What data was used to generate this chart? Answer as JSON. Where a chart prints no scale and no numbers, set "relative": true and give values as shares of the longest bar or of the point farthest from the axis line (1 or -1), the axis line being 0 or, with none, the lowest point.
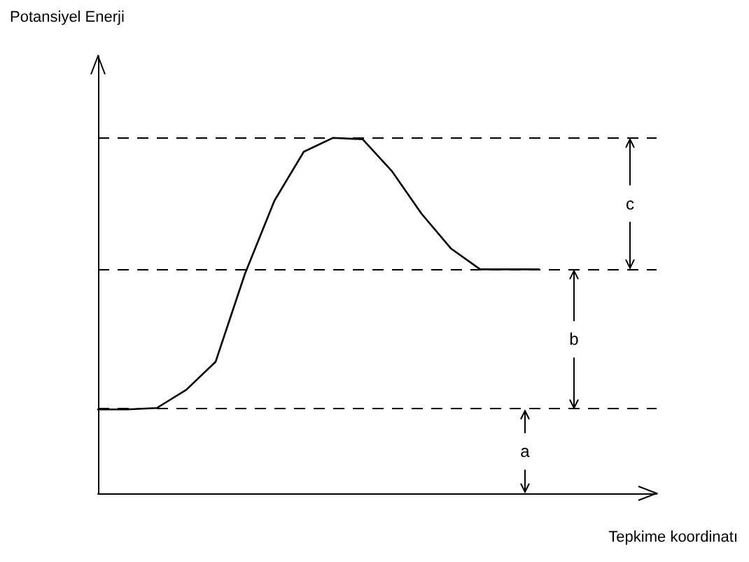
{
  "chart_data": {
    "type": "line",
    "relative": true,
    "title": "Potansiyel Enerji",
    "xlabel": "Tepkime koordinatı",
    "categories": [
      null,
      null,
      null,
      null,
      null,
      null,
      null,
      null,
      null,
      null,
      null,
      null,
      null,
      null,
      null,
      null,
      null,
      null,
      null,
      null
    ],
    "series": [
      {
        "color": "#000000",
        "values": [
          0.236,
          0.236,
          0.24,
          0.291,
          0.37,
          0.618,
          0.823,
          0.961,
          1,
          0.996,
          0.906,
          0.787,
          0.689,
          0.63,
          0.63,
          0.63,
          null,
          null,
          null,
          null
        ]
      }
    ],
    "ref_lines": [
      {
        "axis": "y",
        "value": 0.236,
        "color": "#000000",
        "line_style": "dashed"
      },
      {
        "axis": "y",
        "value": 0.63,
        "color": "#000000",
        "line_style": "dashed"
      },
      {
        "axis": "y",
        "value": 1,
        "color": "#000000",
        "line_style": "dashed"
      }
    ],
    "annotations": [
      "a",
      "b",
      "c"
    ],
    "grid": false,
    "marker": "none",
    "line_style": "solid"
  }
}
